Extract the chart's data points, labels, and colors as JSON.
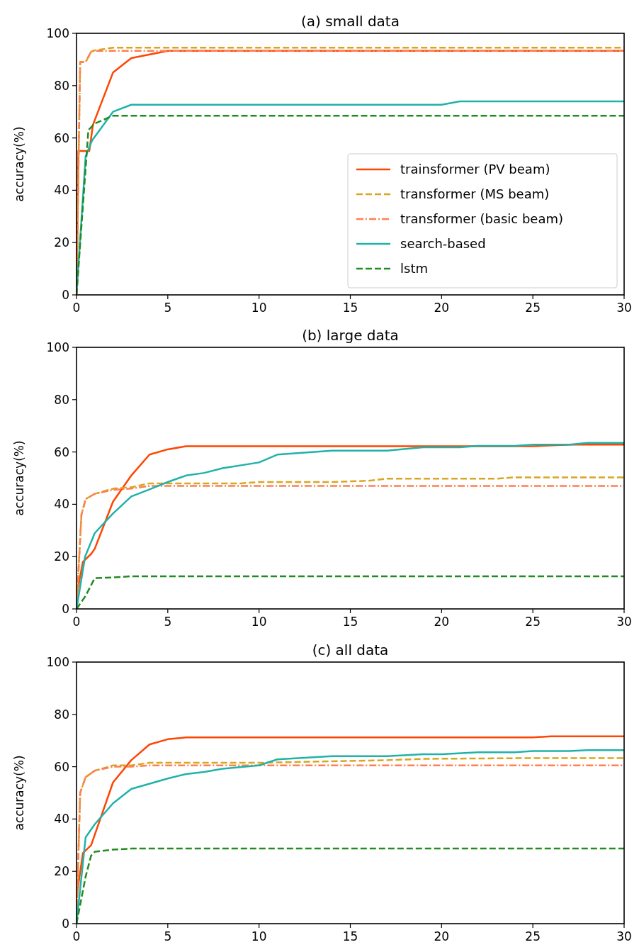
{
  "chart_data": [
    {
      "type": "line",
      "title": "(a) small data",
      "ylabel": "accuracy(%)",
      "xlim": [
        0,
        30
      ],
      "ylim": [
        0,
        100
      ],
      "xticks": [
        0,
        5,
        10,
        15,
        20,
        25,
        30
      ],
      "yticks": [
        0,
        20,
        40,
        60,
        80,
        100
      ],
      "legend": "bottom right",
      "grid": false,
      "series": [
        {
          "name": "trainsformer (PV beam)",
          "color": "#ff4500",
          "line_style": "solid",
          "x": [
            0,
            0.1,
            0.7,
            0.9,
            2,
            3,
            5,
            30
          ],
          "values": [
            0,
            55,
            55,
            65,
            85,
            90.5,
            93.3,
            93.3
          ]
        },
        {
          "name": "transformer (MS beam)",
          "color": "#daa520",
          "line_style": "dashed",
          "x": [
            0,
            0.2,
            0.5,
            0.8,
            1,
            2,
            30
          ],
          "values": [
            0,
            89,
            89,
            93,
            93.5,
            94.5,
            94.5
          ]
        },
        {
          "name": "transformer (basic beam)",
          "color": "#ff7f50",
          "line_style": "dashdot",
          "x": [
            0,
            0.2,
            0.5,
            0.8,
            1,
            30
          ],
          "values": [
            0,
            89,
            89,
            93,
            93.3,
            93.3
          ]
        },
        {
          "name": "search-based",
          "color": "#20b2aa",
          "line_style": "solid",
          "x": [
            0,
            0.5,
            0.85,
            2,
            3,
            20,
            21,
            30
          ],
          "values": [
            0,
            53,
            59,
            70,
            72.7,
            72.7,
            74,
            74
          ]
        },
        {
          "name": "lstm",
          "color": "#228b22",
          "line_style": "dashed",
          "x": [
            0,
            0.65,
            1,
            2,
            30
          ],
          "values": [
            0,
            63,
            65.5,
            68.5,
            68.5
          ]
        }
      ]
    },
    {
      "type": "line",
      "title": "(b) large data",
      "ylabel": "accuracy(%)",
      "xlim": [
        0,
        30
      ],
      "ylim": [
        0,
        100
      ],
      "xticks": [
        0,
        5,
        10,
        15,
        20,
        25,
        30
      ],
      "yticks": [
        0,
        20,
        40,
        60,
        80,
        100
      ],
      "grid": false,
      "series": [
        {
          "color": "#ff4500",
          "line_style": "solid",
          "x": [
            0,
            0.35,
            0.8,
            1,
            2,
            3,
            4,
            5,
            6,
            25,
            27,
            30
          ],
          "values": [
            5,
            18,
            21,
            23,
            41,
            51,
            59,
            61,
            62.2,
            62.2,
            62.8,
            62.8
          ]
        },
        {
          "color": "#daa520",
          "line_style": "dashed",
          "x": [
            0,
            0.27,
            0.5,
            1,
            2,
            3,
            4,
            9,
            10,
            14,
            16,
            17,
            23,
            24,
            30
          ],
          "values": [
            0,
            36,
            42,
            44,
            46,
            46.5,
            48,
            48,
            48.5,
            48.5,
            49,
            49.8,
            49.8,
            50.3,
            50.3
          ]
        },
        {
          "color": "#ff7f50",
          "line_style": "dashdot",
          "x": [
            0,
            0.27,
            0.5,
            1,
            2,
            3,
            4,
            30
          ],
          "values": [
            0,
            36,
            42,
            44,
            45.5,
            46,
            47,
            47
          ]
        },
        {
          "color": "#20b2aa",
          "line_style": "solid",
          "x": [
            0,
            0.47,
            1,
            2,
            3,
            4,
            5,
            6,
            7,
            8,
            10,
            11,
            14,
            17,
            19,
            21,
            22,
            24,
            25,
            27,
            28,
            30
          ],
          "values": [
            0,
            20,
            29,
            36.5,
            43,
            45.7,
            48.5,
            51,
            52,
            53.8,
            56,
            59,
            60.5,
            60.5,
            61.8,
            61.8,
            62.3,
            62.3,
            62.8,
            62.8,
            63.5,
            63.5
          ]
        },
        {
          "color": "#228b22",
          "line_style": "dashed",
          "x": [
            0,
            0.5,
            1,
            2,
            3,
            30
          ],
          "values": [
            0,
            5,
            11.8,
            12,
            12.5,
            12.5
          ]
        }
      ]
    },
    {
      "type": "line",
      "title": "(c) all data",
      "ylabel": "accuracy(%)",
      "xlim": [
        0,
        30
      ],
      "ylim": [
        0,
        100
      ],
      "xticks": [
        0,
        5,
        10,
        15,
        20,
        25,
        30
      ],
      "yticks": [
        0,
        20,
        40,
        60,
        80,
        100
      ],
      "grid": false,
      "series": [
        {
          "color": "#ff4500",
          "line_style": "solid",
          "x": [
            0,
            0.35,
            0.8,
            2,
            3,
            4,
            5,
            6,
            25,
            26,
            30
          ],
          "values": [
            10,
            27,
            30,
            54,
            62.5,
            68.5,
            70.5,
            71.2,
            71.2,
            71.6,
            71.6
          ]
        },
        {
          "color": "#daa520",
          "line_style": "dashed",
          "x": [
            0,
            0.2,
            0.5,
            1,
            2,
            3,
            4,
            10,
            17,
            19,
            25,
            30
          ],
          "values": [
            0,
            50,
            56,
            58.5,
            60.5,
            60.5,
            61.5,
            61.5,
            62.5,
            63,
            63.3,
            63.3
          ]
        },
        {
          "color": "#ff7f50",
          "line_style": "dashdot",
          "x": [
            0,
            0.2,
            0.5,
            1,
            2,
            3,
            4,
            30
          ],
          "values": [
            0,
            50,
            56,
            58.5,
            60,
            60,
            60.5,
            60.5
          ]
        },
        {
          "color": "#20b2aa",
          "line_style": "solid",
          "x": [
            0,
            0.5,
            1,
            2,
            3,
            5,
            6,
            7,
            8,
            10,
            11,
            14,
            17,
            19,
            20,
            22,
            24,
            25,
            27,
            28,
            30
          ],
          "values": [
            0,
            33,
            38,
            46,
            51.5,
            55.5,
            57.2,
            58,
            59.2,
            60.5,
            62.8,
            64,
            64,
            64.8,
            64.8,
            65.5,
            65.5,
            66,
            66,
            66.3,
            66.3
          ]
        },
        {
          "color": "#228b22",
          "line_style": "dashed",
          "x": [
            0,
            0.5,
            0.8,
            1,
            2,
            3,
            30
          ],
          "values": [
            0,
            18,
            26,
            27.5,
            28.3,
            28.7,
            28.7
          ]
        }
      ]
    }
  ]
}
